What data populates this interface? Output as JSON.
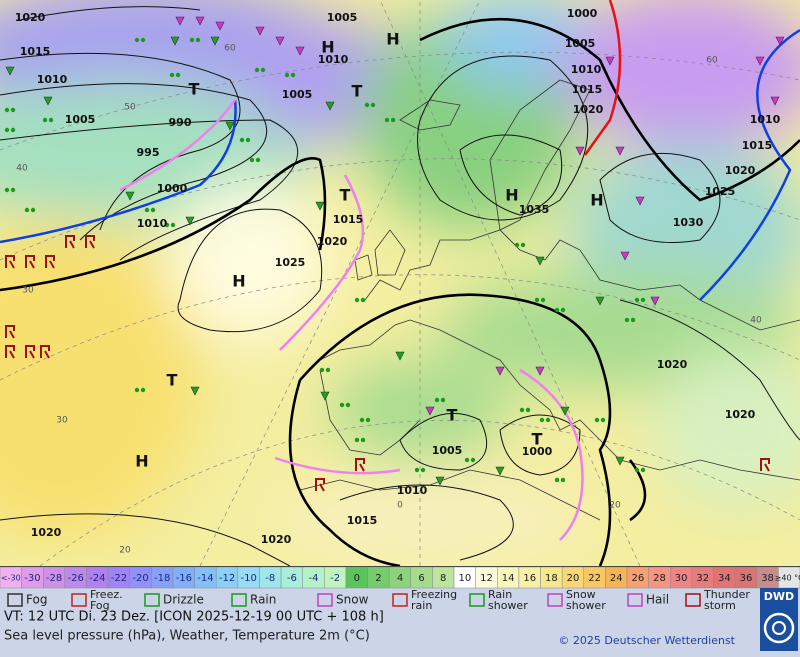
{
  "map": {
    "pressure_labels": [
      "1020",
      "1005",
      "1000",
      "1015",
      "1010",
      "1005",
      "1010",
      "1010",
      "1015",
      "1005",
      "1020",
      "1005",
      "990",
      "1010",
      "1015",
      "995",
      "1020",
      "1000",
      "1025",
      "1035",
      "1015",
      "1030",
      "1010",
      "1020",
      "1025",
      "1020",
      "1020",
      "1005",
      "1000",
      "1010",
      "1015",
      "1020",
      "1020"
    ],
    "latitude_labels": [
      "60",
      "50",
      "40",
      "30",
      "30",
      "20",
      "0",
      "20",
      "40",
      "60"
    ],
    "centers": [
      "H",
      "H",
      "T",
      "T",
      "T",
      "H",
      "H",
      "H",
      "T",
      "H",
      "T",
      "T"
    ]
  },
  "scale": {
    "labels": [
      "<-30",
      "-30",
      "-28",
      "-26",
      "-24",
      "-22",
      "-20",
      "-18",
      "-16",
      "-14",
      "-12",
      "-10",
      "-8",
      "-6",
      "-4",
      "-2",
      "0",
      "2",
      "4",
      "6",
      "8",
      "10",
      "12",
      "14",
      "16",
      "18",
      "20",
      "22",
      "24",
      "26",
      "28",
      "30",
      "32",
      "34",
      "36",
      "38",
      "≥40 °C"
    ],
    "colors": [
      "#f0b0f0",
      "#e09ce8",
      "#d090e4",
      "#c088e8",
      "#b080ec",
      "#a084f4",
      "#9090f8",
      "#88a0f8",
      "#80b0f8",
      "#84c0f8",
      "#8cd0f8",
      "#98dcf4",
      "#a0e6e8",
      "#a8eed8",
      "#b4f2c8",
      "#c0f4bc",
      "#5cc45c",
      "#74cc6c",
      "#8cd47c",
      "#a4dc8c",
      "#bce49c",
      "#ffffff",
      "#fcfcdc",
      "#f8f8bc",
      "#f8f0a4",
      "#f8e88c",
      "#f8d874",
      "#f8c864",
      "#f8b454",
      "#f8a070",
      "#f89484",
      "#f08484",
      "#e87c7c",
      "#e07474",
      "#d87474",
      "#c88c8c",
      "#e4e4e4"
    ]
  },
  "legend": [
    "Fog",
    "Freez. Fog",
    "Drizzle",
    "Rain",
    "Snow",
    "Freezing rain",
    "Rain shower",
    "Snow shower",
    "Hail",
    "Thunder storm"
  ],
  "footer": {
    "valid_time": "VT: 12 UTC Di.  23 Dez. [ICON 2025-12-19  00 UTC + 108 h]",
    "description": "Sea level pressure (hPa), Weather, Temperature 2m (°C)",
    "copyright": "© 2025 Deutscher Wetterdienst",
    "logo": "DWD"
  }
}
